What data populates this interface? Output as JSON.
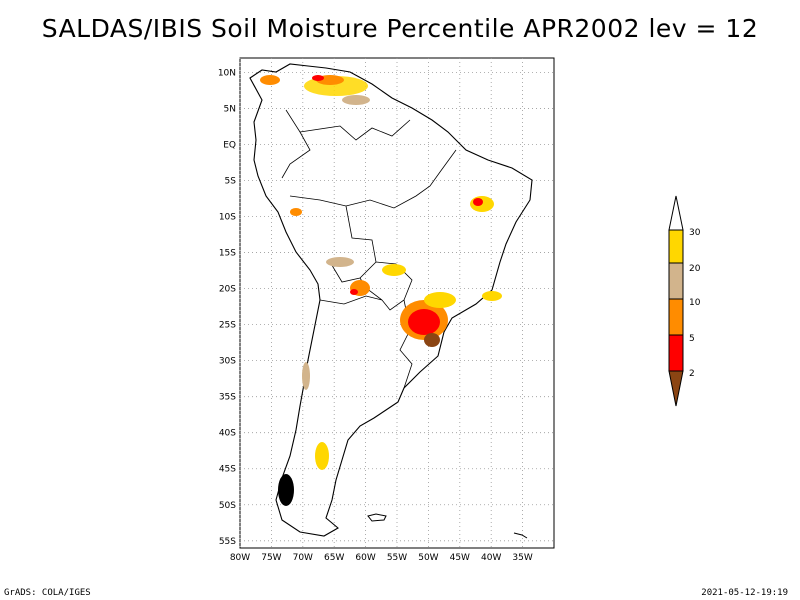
{
  "title": "SALDAS/IBIS Soil Moisture Percentile APR2002 lev = 12",
  "footer": {
    "left": "GrADS: COLA/IGES",
    "right": "2021-05-12-19:19"
  },
  "map": {
    "lon_range": [
      -80,
      -30
    ],
    "lat_range": [
      -56,
      12
    ],
    "grid": true,
    "lat_ticks": [
      "10N",
      "5N",
      "EQ",
      "5S",
      "10S",
      "15S",
      "20S",
      "25S",
      "30S",
      "35S",
      "40S",
      "45S",
      "50S",
      "55S"
    ],
    "lon_ticks": [
      "80W",
      "75W",
      "70W",
      "65W",
      "60W",
      "55W",
      "50W",
      "45W",
      "40W",
      "35W"
    ]
  },
  "legend": {
    "placement": "right",
    "levels": [
      "30",
      "20",
      "10",
      "5",
      "2"
    ],
    "colors": [
      "#ffd700",
      "#d2b48c",
      "#ff8c00",
      "#ff0000",
      "#8b4513"
    ],
    "bottom_color": "#8b4513",
    "top_color": "#ffffff"
  }
}
